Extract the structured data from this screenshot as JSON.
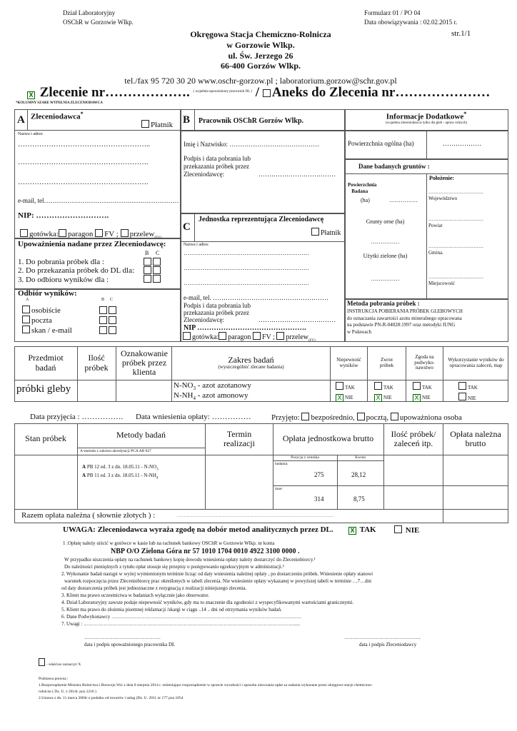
{
  "header": {
    "dept": "Dział Laboratoryjny",
    "dept2": "OSChR w Gorzowie Wlkp.",
    "form": "Formularz  01 / PO 04",
    "valid": "Data  obowiązywania :  02.02.2015 r.",
    "page": "str.1/1",
    "org": [
      "Okręgowa Stacja Chemiczno-Rolnicza",
      "w   Gorzowie Wlkp.",
      "ul. Św. Jerzego 26",
      "66-400 Gorzów Wlkp."
    ],
    "contact": "tel./fax  95 720 30 20   www.oschr-gorzow.pl ;  laboratorium.gorzow@schr.gov.pl"
  },
  "title": {
    "order_checked": "X",
    "order": "Zlecenie  nr……………….",
    "note": "( wypełnia upoważniony pracownik DL )",
    "sep": "/",
    "annex": "Aneks  do Zlecenia  nr…………………",
    "grey_note": "*KOLUMNY SZARE WYPEŁNIA ZLECENIODAWCA"
  },
  "secA": {
    "letter": "A",
    "title": "Zleceniodawca",
    "star": "*",
    "payer": "Płatnik",
    "name_label": "Nazwa i adres:",
    "dots1": "………………………………………………..",
    "dots2": "……………………………………………….",
    "dots3": "……………………………………………….",
    "email": "e-mail, tel………………………………………………………",
    "nip": "NIP: ……………………….",
    "pay": [
      "gotówka:",
      "paragon",
      "FV ;",
      "przelew"
    ],
    "pay_sub": "(FV)",
    "auth_title": "Upoważnienia nadane przez Zleceniodawcę:",
    "bc": [
      "B",
      "C"
    ],
    "auth": [
      "1. Do pobrania próbek dla :",
      "2. Do przekazania próbek do DL dla:",
      "3. Do odbioru wyników dla :"
    ],
    "recv_title": "Odbiór wyników:",
    "recv_a": "A",
    "recv": [
      "osobiście",
      "poczta",
      "skan / e-mail"
    ]
  },
  "secB": {
    "letter": "B",
    "title": "Pracownik OSChR Gorzów Wlkp.",
    "name": "Imię i Nazwisko:  ……………………………………",
    "sig": [
      "Podpis i data pobrania lub",
      "przekazania próbek przez",
      "Zleceniodawcę:"
    ],
    "sig_dots": "………………………………"
  },
  "secC": {
    "letter": "C",
    "title": "Jednostka reprezentująca Zleceniodawcę",
    "payer": "Płatnik",
    "name_label": "Nazwa i adres:",
    "dots": "…………………………………………………………",
    "email": "e-mail, tel. ………………………………………………",
    "sig": [
      "Podpis i data pobrania lub",
      "przekazania próbek przez",
      "Zleceniodawcę:"
    ],
    "sig_dots": "………………………………",
    "nip": "NIP    ……………………………………….",
    "pay": [
      "gotówka:",
      "paragon",
      "FV ;",
      "przelew"
    ],
    "pay_sub": "(FV)"
  },
  "info": {
    "title": "Informacje Dodatkowe",
    "star": "*",
    "sub": "(wypełnia zleceniodawca tylko dla gleb - upraw rolnych)",
    "area": "Powierzchnia ogólna (ha)",
    "area_dots": "………………",
    "soil": "Dane badanych gruntów :",
    "tested": [
      "Powierzchnia",
      "Badana",
      "(ha)"
    ],
    "tested_dots": "……………",
    "arable": "Grunty orne (ha)",
    "arable_dots": "……………",
    "grass": "Użytki zielone (ha)",
    "grass_dots": "……………",
    "loc_title": "Położenie:",
    "loc": [
      "Województwo",
      "Powiat",
      "Gmina.",
      "Miejscowość"
    ],
    "loc_dots": "……………………………",
    "method_title": "Metoda pobrania próbek :",
    "method": [
      "INSTRUKCJA POBIERANIA PRÓBEK GLEBOWYCH",
      "do oznaczania zawartości azotu mineralnego opracowana",
      "na podstawie PN-R-04028:1997 oraz metodyki IUNG",
      "w Puławach"
    ]
  },
  "t1": {
    "headers": [
      "Przedmiot badań",
      "Ilość próbek",
      "Oznakowanie próbek przez klienta",
      "Zakres badań",
      "Niepewność wyników",
      "Zwrot próbek",
      "Zgoda na podwyko-nawstwo",
      "Wykorzystanie wyników do opracowania zaleceń, map"
    ],
    "scope_sub": "(wyszczególnić zlecane badania)",
    "subject": "próbki gleby",
    "tests": [
      {
        "code": "N-NO",
        "sub": "3",
        "name": " - azot azotanowy"
      },
      {
        "code": "N-NH",
        "sub": "4",
        "name": " - azot amonowy"
      }
    ],
    "yes": "TAK",
    "no": "NIE",
    "choices": [
      {
        "tak": "",
        "nie": "X"
      },
      {
        "tak": "",
        "nie": "X"
      },
      {
        "tak": "",
        "nie": "X"
      },
      {
        "tak": "",
        "nie": ""
      }
    ]
  },
  "receipt": {
    "date": "Data  przyjęcia  : …………….",
    "paydate": "Data  wniesienia  opłaty: ……………",
    "accepted": "Przyjęto:",
    "opts": [
      "bezpośrednio,",
      "pocztą,",
      "upoważniona  osoba"
    ]
  },
  "t2": {
    "headers": [
      "Stan  próbek",
      "Metody  badań",
      "Termin realizacji",
      "Opłata jednostkowa brutto",
      "Ilość próbek/ zaleceń itp.",
      "Opłata należna brutto"
    ],
    "method_note": "A-metoda z zakresu akredytacji PCA AB 827",
    "methods": [
      {
        "a": "A",
        "text": "PB 12 ed. 3 z dn. 18.05.11  - N-NO",
        "sub": "3"
      },
      {
        "a": "A",
        "text": "PB 11 ed. 3 z dn. 18.05.11  - N-NH",
        "sub": "4"
      }
    ],
    "pos_h": "Pozycja  z cennika",
    "amt_h": "Kwota",
    "rows": [
      {
        "label": "badania:",
        "pos": "275",
        "amt": "28,12"
      },
      {
        "label": "inne:",
        "pos": "314",
        "amt": "8,75"
      }
    ],
    "total": "Razem opłata  należna  ( słownie złotych ) :",
    "total_dots": "……………………………………………………………………………………………………………………"
  },
  "consent": {
    "text": "UWAGA: Zleceniodawca wyraża zgodę na dobór metod analitycznych przez DL.",
    "tak_mark": "X",
    "tak": "TAK",
    "nie": "NIE"
  },
  "notes": {
    "n1": "1 .Opłatę należy uiścić w gotówce w kasie  lub na rachunek bankowy OSChR w Gorzowie Wlkp. nr konta",
    "bank": "NBP  O/O  Zielona  Góra     nr  57 1010 1704 0010 4922 3100 0000 .",
    "n1b": "W przypadku uiszczenia opłaty na rachunek bankowy kopię dowodu wniesienia opłaty należy dostarczyć  do Zleceniobiorcy.¹",
    "n1c": "Do należności pieniężnych z tytułu opłat stosuje się przepisy o postępowaniu egzekucyjnym w administracji.²",
    "n2": "2. Wykonanie badań nastąpi w wyżej wymienionym terminie licząc od daty wniesienia należnej opłaty , po dostarczeniu próbek. Wniesienie opłaty stanowi",
    "n2b": "warunek rozpoczęcia przez Zleceniobiorcę prac określonych w tabeli zlecenia. Nie wniesienie opłaty  wykazanej w powyższej tabeli w terminie …7…dni",
    "n2c": "od daty dostarczenia próbek jest jednoznaczne z  rezygnacją z realizacji niniejszego zlecenia.",
    "n3": "3. Klient ma prawo uczestnictwa w badaniach wyłącznie jako obserwator.",
    "n4": "4. Dział Laboratoryjny zawsze  podaje niepewność wyników,  gdy ma to znaczenie dla zgodności z wyspecyfikowanymi wartościami   granicznymi.",
    "n5": "5. Klient ma prawo do złożenia pisemnej reklamacji /skargi w ciągu ..14 .. dni  od  otrzymania wyników badań.",
    "n6": "6. Dane Podwykonawcy ……………………………………………………………………………………………………",
    "n7": "7. Uwagi : ………………………………………………………………………………………………………………....."
  },
  "signatures": {
    "dots": "……………………………………….",
    "left": "data  i  podpis upoważnionego pracownika DL",
    "right": "data  i  podpis Zleceniodawcy"
  },
  "legend": "- właściwe zaznaczyć  X",
  "legal": {
    "title": "Podstawa prawna :",
    "l1": "1.Rozporządzenie Ministra Rolnictwa i Rozwoju Wsi z dnia 8 sierpnia 2014 r. zmieniające rozporządzenie w sprawie wysokości i sposobu uiszczania opłat za zadania wykonane przez okręgowe stacje chemiczno-",
    "l1b": "rolnicze ( Dz. U.  z 2014r. poz.1210 )",
    "l2": "2.Ustawa z dn. 11 marca 2004r o podatku od towarów i usług (Dz. U. 2011 nr 177 poz.1054"
  },
  "colors": {
    "border": "#555555",
    "check": "#006600"
  }
}
